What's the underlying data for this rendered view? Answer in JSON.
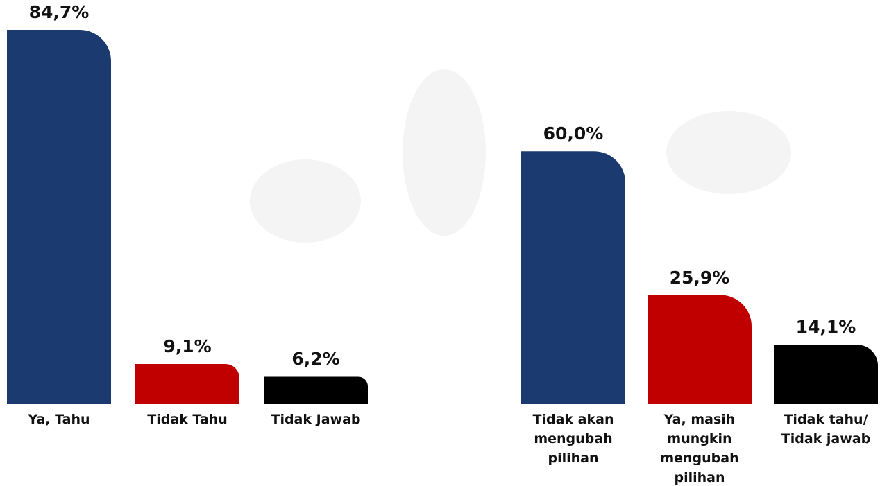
{
  "chart_data": [
    {
      "type": "bar",
      "categories": [
        "Ya, Tahu",
        "Tidak Tahu",
        "Tidak Jawab"
      ],
      "values": [
        84.7,
        9.1,
        6.2
      ],
      "value_labels": [
        "84,7%",
        "9,1%",
        "6,2%"
      ],
      "colors": [
        "#1b3a6f",
        "#c00000",
        "#000000"
      ]
    },
    {
      "type": "bar",
      "categories": [
        "Tidak akan mengubah pilihan",
        "Ya, masih mungkin mengubah pilihan",
        "Tidak tahu/ Tidak jawab"
      ],
      "values": [
        60.0,
        25.9,
        14.1
      ],
      "value_labels": [
        "60,0%",
        "25,9%",
        "14,1%"
      ],
      "colors": [
        "#1b3a6f",
        "#c00000",
        "#000000"
      ]
    }
  ]
}
